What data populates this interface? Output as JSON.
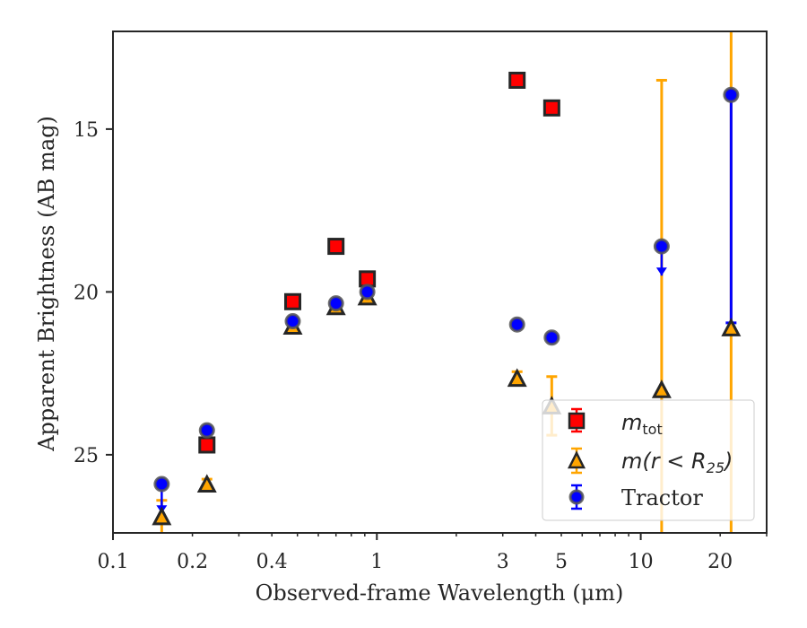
{
  "chart_data": {
    "type": "scatter",
    "xlabel": "Observed-frame Wavelength (μm)",
    "ylabel": "Apparent Brightness (AB mag)",
    "xscale": "log",
    "xlim": [
      0.1,
      30
    ],
    "ylim": [
      27.4,
      12.0
    ],
    "y_inverted": true,
    "xticks": [
      0.1,
      0.2,
      0.4,
      1,
      3,
      5,
      10,
      20
    ],
    "xtick_labels": [
      "0.1",
      "0.2",
      "0.4",
      "1",
      "3",
      "5",
      "10",
      "20"
    ],
    "yticks": [
      15,
      20,
      25
    ],
    "ytick_labels": [
      "15",
      "20",
      "25"
    ],
    "grid": false,
    "legend_position": "bottom-right",
    "colors": {
      "m_tot": "#ff0000",
      "m_r25": "#ffa500",
      "tractor": "#0000ff",
      "marker_edge": "#262626",
      "frame": "#262626"
    },
    "series": [
      {
        "name": "m_tot",
        "marker": "square",
        "points": [
          {
            "x": 0.227,
            "y": 24.7
          },
          {
            "x": 0.48,
            "y": 20.3
          },
          {
            "x": 0.7,
            "y": 18.6
          },
          {
            "x": 0.92,
            "y": 19.6
          },
          {
            "x": 3.4,
            "y": 13.5
          },
          {
            "x": 4.6,
            "y": 14.35
          }
        ]
      },
      {
        "name": "m(r < R25)",
        "marker": "triangle",
        "points": [
          {
            "x": 0.153,
            "y": 26.9,
            "err_lo": 0.5,
            "err_hi": 0.5
          },
          {
            "x": 0.227,
            "y": 25.9,
            "err_lo": 0.15,
            "err_hi": 0.15
          },
          {
            "x": 0.48,
            "y": 21.05
          },
          {
            "x": 0.7,
            "y": 20.45
          },
          {
            "x": 0.92,
            "y": 20.15
          },
          {
            "x": 3.4,
            "y": 22.65,
            "err_lo": 0.2,
            "err_hi": 0.2
          },
          {
            "x": 4.6,
            "y": 23.5,
            "err_lo": 0.9,
            "err_hi": 0.9
          },
          {
            "x": 12.0,
            "y": 23.0,
            "err_lo": 9.5,
            "err_hi": 9.5
          },
          {
            "x": 22.0,
            "y": 21.1,
            "err_lo": 9.5,
            "err_hi": 9.5
          }
        ]
      },
      {
        "name": "Tractor",
        "marker": "circle",
        "points": [
          {
            "x": 0.153,
            "y": 25.9,
            "err_lo": 0.9,
            "upper_limit": true
          },
          {
            "x": 0.227,
            "y": 24.25
          },
          {
            "x": 0.48,
            "y": 20.9
          },
          {
            "x": 0.7,
            "y": 20.35
          },
          {
            "x": 0.92,
            "y": 20.0
          },
          {
            "x": 3.4,
            "y": 21.0
          },
          {
            "x": 4.6,
            "y": 21.4
          },
          {
            "x": 12.0,
            "y": 18.6,
            "err_lo": 0.9,
            "upper_limit": true
          },
          {
            "x": 22.0,
            "y": 13.95,
            "err_lo": 7.0,
            "err_hi": 0.05
          }
        ]
      }
    ]
  },
  "legend": {
    "items": [
      {
        "key": "m_tot",
        "label_main": "m",
        "label_sub": "tot"
      },
      {
        "key": "m_r25",
        "label_main": "m(r < R",
        "label_sub": "25",
        "label_tail": ")"
      },
      {
        "key": "tractor",
        "label": "Tractor"
      }
    ]
  }
}
